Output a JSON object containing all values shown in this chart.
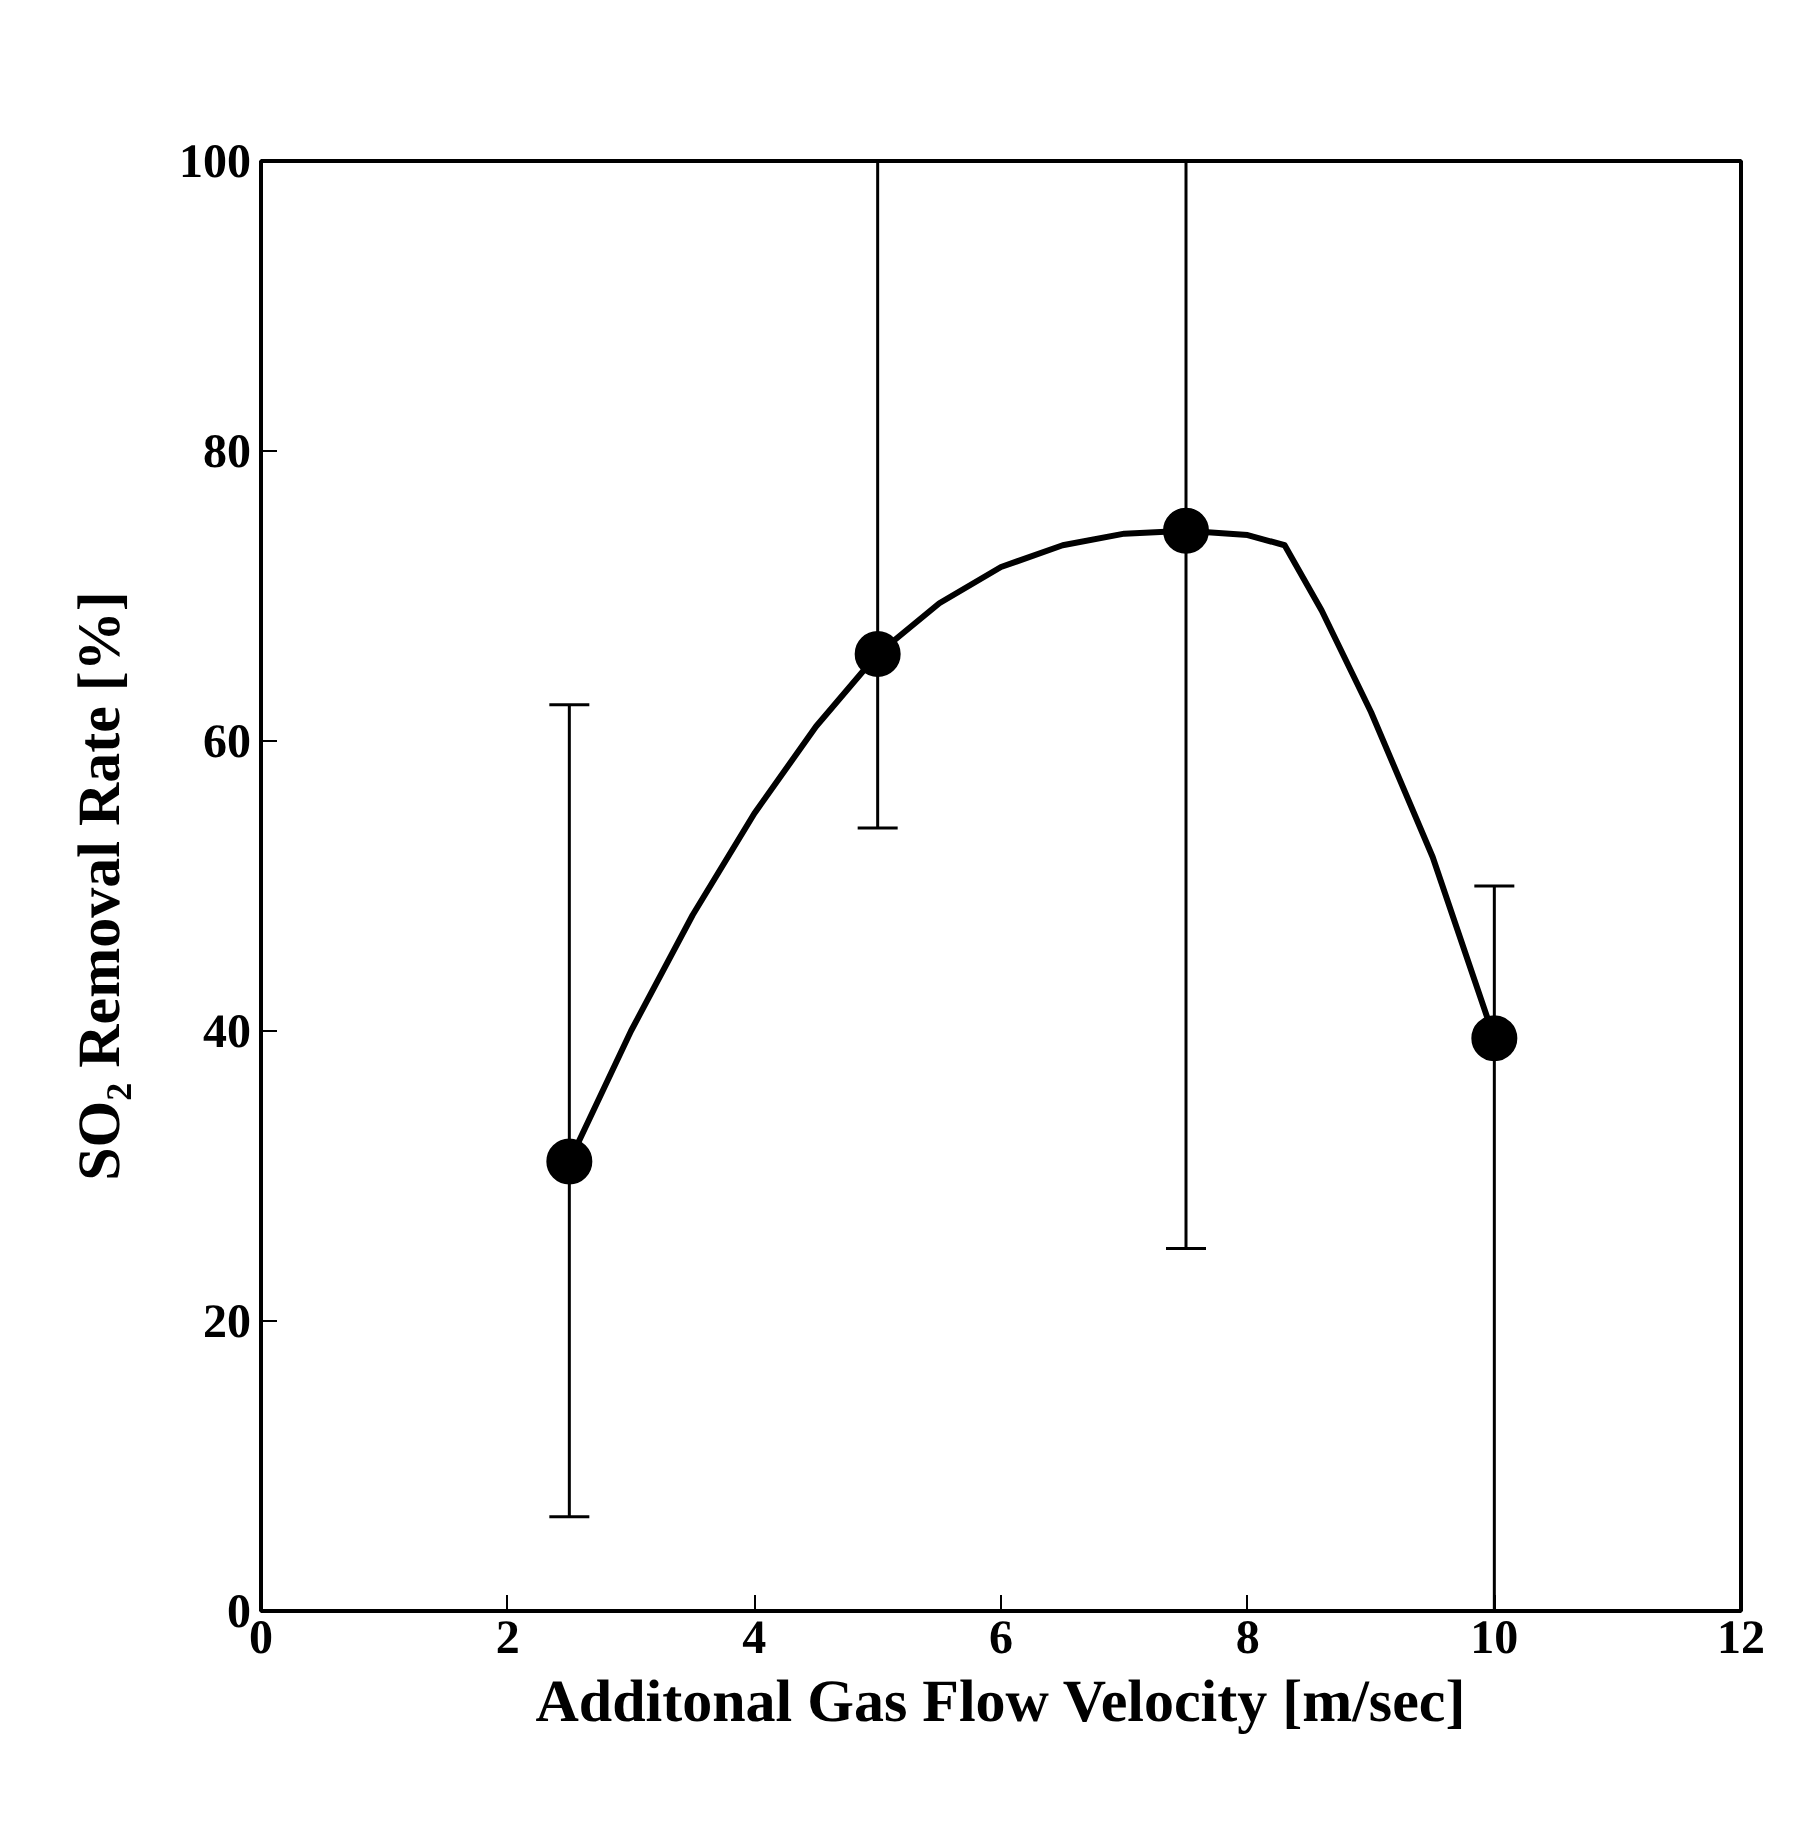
{
  "chart_data": {
    "type": "scatter",
    "xlabel": "Additonal Gas Flow Velocity [m/sec]",
    "ylabel": "SO₂ Removal Rate [%]",
    "xlim": [
      0,
      12
    ],
    "ylim": [
      0,
      100
    ],
    "xticks": [
      0,
      2,
      4,
      6,
      8,
      10,
      12
    ],
    "yticks": [
      0,
      20,
      40,
      60,
      80,
      100
    ],
    "grid": false,
    "series": [
      {
        "marker": "circle",
        "color": "#000000",
        "x": [
          2.5,
          5,
          7.5,
          10
        ],
        "values": [
          31,
          66,
          74.5,
          39.5
        ],
        "errors": [
          [
            6.5,
            62.5
          ],
          [
            54,
            100
          ],
          [
            25,
            100
          ],
          [
            0,
            50
          ]
        ]
      },
      {
        "type": "line",
        "color": "#000000",
        "line_style": "solid",
        "x": [
          2.5,
          3,
          3.5,
          4,
          4.5,
          5,
          5.5,
          6,
          6.5,
          7,
          7.5,
          8,
          8.3,
          8.6,
          9,
          9.5,
          10
        ],
        "values": [
          31,
          40,
          48,
          55,
          61,
          66,
          69.5,
          72,
          73.5,
          74.3,
          74.5,
          74.2,
          73.5,
          69,
          62,
          52,
          39.5
        ]
      }
    ]
  }
}
